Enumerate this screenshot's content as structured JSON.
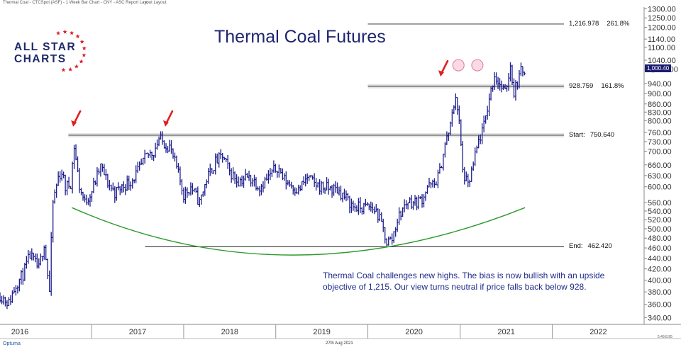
{
  "header": {
    "caption": "Thermal Coal - CTCSpot (ASF) - 1 Week Bar Chart - CNY - ASC Report Layout Layout",
    "close_glyph": "✕"
  },
  "title": "Thermal Coal Futures",
  "logo": {
    "line1": "ALL STAR",
    "line2": "CHARTS"
  },
  "commentary": "Thermal Coal challenges new highs. The bias is now bullish with an upside objective of 1,215. Our view turns neutral if price falls back below 928.",
  "footer": {
    "brand": "Optuma",
    "date": "27th Aug 2021",
    "version": "5.49.8.95"
  },
  "price_badge": "1,000.40",
  "colors": {
    "bars": "#1c1c8c",
    "arrows": "#e02020",
    "arc": "#2e9a2e",
    "title": "#1f2470",
    "commentary": "#1f2a8a",
    "logo_text": "#1f2a6a",
    "logo_stars": "#d9232e",
    "badge_bg": "#1c1c70",
    "highlight_bands": "#d8d8d8"
  },
  "chart_data": {
    "type": "bar",
    "subtype": "ohlc-weekly",
    "y_scale": "log",
    "ylim": [
      330,
      1310
    ],
    "x_range": [
      "2016-01-04",
      "2022-12-31"
    ],
    "x_ticks": [
      "2016",
      "2017",
      "2018",
      "2019",
      "2020",
      "2021",
      "2022"
    ],
    "y_ticks": [
      340,
      360,
      380,
      400,
      420,
      440,
      460,
      480,
      500,
      520,
      540,
      560,
      600,
      630,
      660,
      700,
      730,
      760,
      800,
      830,
      860,
      900,
      940,
      1000,
      1040,
      1100,
      1140,
      1200,
      1250,
      1300
    ],
    "y_tick_labels": [
      "340.00",
      "360.00",
      "380.00",
      "400.00",
      "420.00",
      "440.00",
      "460.00",
      "480.00",
      "500.00",
      "520.00",
      "540.00",
      "560.00",
      "600.00",
      "630.00",
      "660.00",
      "700.00",
      "730.00",
      "760.00",
      "800.00",
      "830.00",
      "860.00",
      "900.00",
      "940.00",
      "1,000.00",
      "1040.00",
      "1100.00",
      "1140.00",
      "1200.00",
      "1250.00",
      "1300.00"
    ],
    "last_price": 1000.4,
    "levels": [
      {
        "value": 1216.978,
        "label": "1,216.978",
        "tag": "261.8%",
        "start": "2020-01-01"
      },
      {
        "value": 928.759,
        "label": "928.759",
        "tag": "161.8%",
        "start": "2020-01-01",
        "band": true
      },
      {
        "value": 750.64,
        "label": "750.640",
        "tag": "Start:",
        "start": "2016-10-01",
        "band": true
      },
      {
        "value": 462.42,
        "label": "462.420",
        "tag": "End:",
        "start": "2017-08-01"
      }
    ],
    "arrows": [
      {
        "date": "2016-10-20",
        "price": 760
      },
      {
        "date": "2017-10-20",
        "price": 760
      },
      {
        "date": "2020-10-15",
        "price": 945
      }
    ],
    "circles": [
      {
        "date": "2020-12-25",
        "price": 1005
      },
      {
        "date": "2021-03-10",
        "price": 1005
      }
    ],
    "arc": {
      "start": [
        "2016-10-15",
        548
      ],
      "bottom": [
        "2019-02-15",
        446
      ],
      "end": [
        "2021-09-15",
        548
      ]
    },
    "anchors": [
      [
        "2016-01-04",
        375
      ],
      [
        "2016-02-08",
        362
      ],
      [
        "2016-03-07",
        392
      ],
      [
        "2016-04-04",
        410
      ],
      [
        "2016-05-02",
        445
      ],
      [
        "2016-06-06",
        420
      ],
      [
        "2016-06-27",
        470
      ],
      [
        "2016-07-18",
        380
      ],
      [
        "2016-08-01",
        560
      ],
      [
        "2016-08-22",
        625
      ],
      [
        "2016-09-05",
        640
      ],
      [
        "2016-09-19",
        598
      ],
      [
        "2016-10-10",
        610
      ],
      [
        "2016-10-24",
        715
      ],
      [
        "2016-11-14",
        600
      ],
      [
        "2016-12-05",
        560
      ],
      [
        "2017-01-02",
        590
      ],
      [
        "2017-02-06",
        655
      ],
      [
        "2017-03-06",
        610
      ],
      [
        "2017-04-03",
        585
      ],
      [
        "2017-05-01",
        600
      ],
      [
        "2017-06-05",
        615
      ],
      [
        "2017-07-03",
        640
      ],
      [
        "2017-08-07",
        685
      ],
      [
        "2017-09-04",
        700
      ],
      [
        "2017-09-25",
        740
      ],
      [
        "2017-10-16",
        725
      ],
      [
        "2017-11-06",
        715
      ],
      [
        "2017-12-04",
        650
      ],
      [
        "2018-01-01",
        580
      ],
      [
        "2018-01-29",
        600
      ],
      [
        "2018-03-05",
        560
      ],
      [
        "2018-04-02",
        620
      ],
      [
        "2018-05-07",
        668
      ],
      [
        "2018-06-04",
        685
      ],
      [
        "2018-07-02",
        640
      ],
      [
        "2018-08-06",
        615
      ],
      [
        "2018-09-03",
        625
      ],
      [
        "2018-10-01",
        620
      ],
      [
        "2018-10-29",
        600
      ],
      [
        "2018-12-03",
        625
      ],
      [
        "2019-01-07",
        655
      ],
      [
        "2019-02-04",
        618
      ],
      [
        "2019-03-04",
        605
      ],
      [
        "2019-04-01",
        590
      ],
      [
        "2019-05-06",
        625
      ],
      [
        "2019-06-03",
        608
      ],
      [
        "2019-07-01",
        600
      ],
      [
        "2019-08-05",
        595
      ],
      [
        "2019-09-02",
        592
      ],
      [
        "2019-10-07",
        570
      ],
      [
        "2019-11-04",
        550
      ],
      [
        "2019-12-02",
        548
      ],
      [
        "2020-01-06",
        550
      ],
      [
        "2020-02-03",
        540
      ],
      [
        "2020-02-24",
        510
      ],
      [
        "2020-03-16",
        472
      ],
      [
        "2020-04-06",
        478
      ],
      [
        "2020-04-27",
        520
      ],
      [
        "2020-05-18",
        545
      ],
      [
        "2020-06-08",
        565
      ],
      [
        "2020-07-06",
        560
      ],
      [
        "2020-08-03",
        570
      ],
      [
        "2020-08-24",
        600
      ],
      [
        "2020-09-21",
        605
      ],
      [
        "2020-10-12",
        640
      ],
      [
        "2020-11-02",
        720
      ],
      [
        "2020-11-23",
        780
      ],
      [
        "2020-12-14",
        895
      ],
      [
        "2020-12-28",
        790
      ],
      [
        "2021-01-11",
        640
      ],
      [
        "2021-02-01",
        600
      ],
      [
        "2021-02-22",
        660
      ],
      [
        "2021-03-15",
        730
      ],
      [
        "2021-04-05",
        780
      ],
      [
        "2021-04-26",
        880
      ],
      [
        "2021-05-17",
        975
      ],
      [
        "2021-06-07",
        935
      ],
      [
        "2021-06-28",
        900
      ],
      [
        "2021-07-19",
        1015
      ],
      [
        "2021-08-02",
        905
      ],
      [
        "2021-08-16",
        950
      ],
      [
        "2021-08-30",
        990
      ],
      [
        "2021-09-13",
        1000
      ]
    ]
  }
}
